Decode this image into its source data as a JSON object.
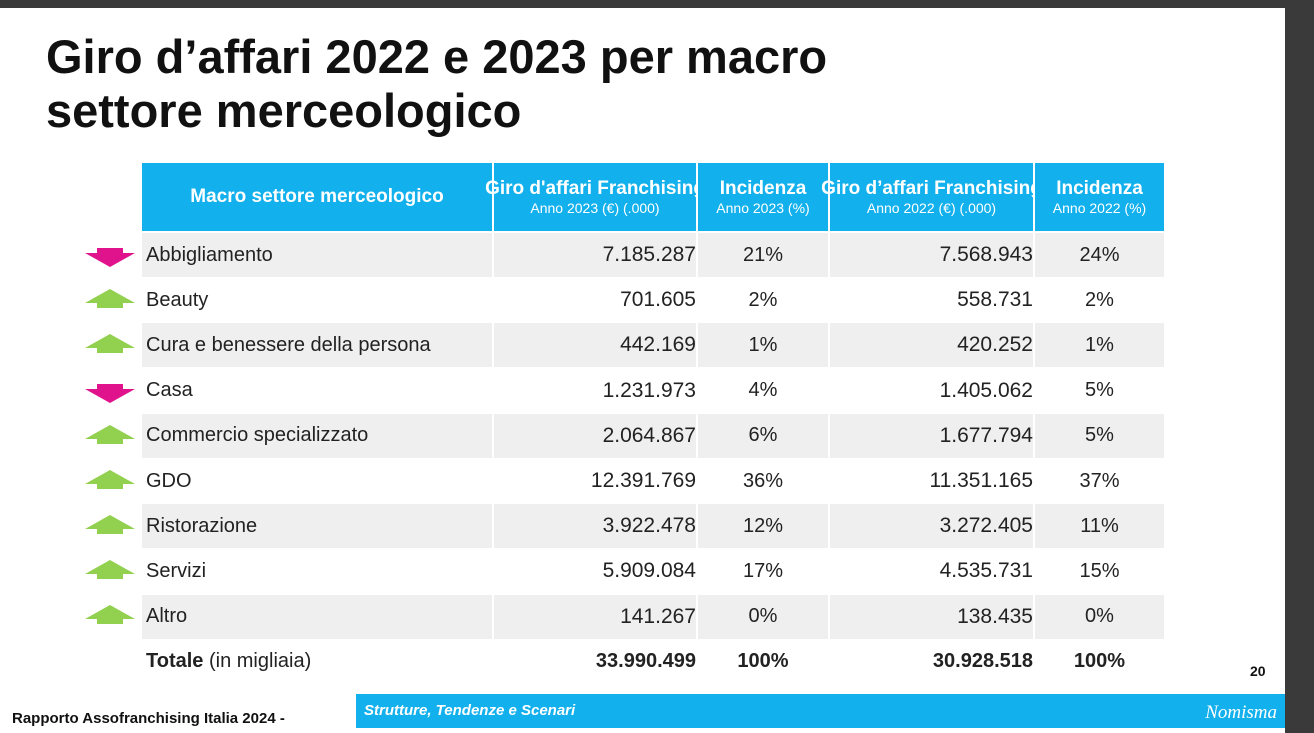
{
  "title": [
    "Giro d’affari 2022 e 2023 per macro",
    "settore merceologico"
  ],
  "table": {
    "header": [
      {
        "label": "Macro settore merceologico"
      },
      {
        "label": "Giro d'affari Franchising",
        "sublabel": "Anno 2023 (€) (.000)"
      },
      {
        "label": "Incidenza",
        "sublabel": "Anno 2023 (%)"
      },
      {
        "label": "Giro d’affari Franchising",
        "sublabel": "Anno 2022 (€) (.000)"
      },
      {
        "label": "Incidenza",
        "sublabel": "Anno 2022 (%)"
      }
    ],
    "rows": [
      [
        "Abbigliamento",
        "7.185.287",
        "21%",
        "7.568.943",
        "24%"
      ],
      [
        "Beauty",
        "701.605",
        "2%",
        "558.731",
        "2%"
      ],
      [
        "Cura e benessere della persona",
        "442.169",
        "1%",
        "420.252",
        "1%"
      ],
      [
        "Casa",
        "1.231.973",
        "4%",
        "1.405.062",
        "5%"
      ],
      [
        "Commercio specializzato",
        "2.064.867",
        "6%",
        "1.677.794",
        "5%"
      ],
      [
        "GDO",
        "12.391.769",
        "36%",
        "11.351.165",
        "37%"
      ],
      [
        "Ristorazione",
        "3.922.478",
        "12%",
        "3.272.405",
        "11%"
      ],
      [
        "Servizi",
        "5.909.084",
        "17%",
        "4.535.731",
        "15%"
      ],
      [
        "Altro",
        "141.267",
        "0%",
        "138.435",
        "0%"
      ]
    ],
    "total": {
      "label": "Totale",
      "note": "(in migliaia)",
      "cells": [
        "33.990.499",
        "100%",
        "30.928.518",
        "100%"
      ]
    }
  },
  "footer": {
    "report": "Rapporto Assofranchising Italia 2024 -",
    "subtitle": "Strutture, Tendenze e Scenari",
    "brand": "Nomisma",
    "page": "20"
  }
}
